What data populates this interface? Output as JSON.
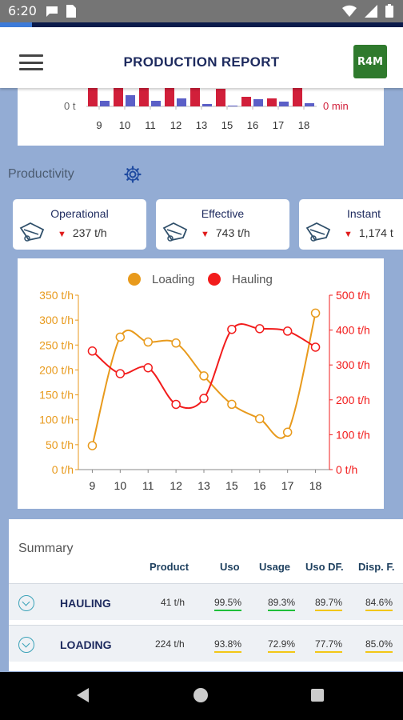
{
  "status_bar": {
    "time": "6:20",
    "progress": 0.08,
    "icons": [
      "chat-icon",
      "sim-icon",
      "wifi-icon",
      "signal-icon",
      "battery-icon"
    ]
  },
  "app_bar": {
    "title": "PRODUCTION REPORT",
    "logo_text": "R4M",
    "menu_icon": "hamburger-icon"
  },
  "top_chart": {
    "categories": [
      "9",
      "10",
      "11",
      "12",
      "13",
      "15",
      "16",
      "17",
      "18"
    ],
    "left_label": "0 t",
    "right_label": "0 min",
    "red_values": [
      0.95,
      1.0,
      1.0,
      1.0,
      1.0,
      0.55,
      0.3,
      0.25,
      0.7
    ],
    "blue_values": [
      0.35,
      0.7,
      0.35,
      0.5,
      0.15,
      0.05,
      0.45,
      0.3,
      0.2
    ],
    "colors": {
      "red": "#d11f3a",
      "blue": "#5b5fc7"
    }
  },
  "productivity": {
    "title": "Productivity",
    "settings_icon": "gear-icon",
    "cards": [
      {
        "title": "Operational",
        "value": "237 t/h",
        "icon": "truck-icon"
      },
      {
        "title": "Effective",
        "value": "743 t/h",
        "icon": "truck-icon"
      },
      {
        "title": "Instant",
        "value": "1,174 t",
        "icon": "truck-icon"
      }
    ]
  },
  "chart_data": {
    "type": "line",
    "x": [
      "9",
      "10",
      "11",
      "12",
      "13",
      "15",
      "16",
      "17",
      "18"
    ],
    "series": [
      {
        "name": "Loading",
        "axis": "left",
        "color": "#e89a1c",
        "values": [
          48,
          266,
          256,
          254,
          188,
          131,
          102,
          75,
          314
        ]
      },
      {
        "name": "Hauling",
        "axis": "right",
        "color": "#f21c1c",
        "values": [
          340,
          275,
          292,
          187,
          204,
          402,
          404,
          397,
          351
        ]
      }
    ],
    "left_axis": {
      "ticks": [
        "0 t/h",
        "50 t/h",
        "100 t/h",
        "150 t/h",
        "200 t/h",
        "250 t/h",
        "300 t/h",
        "350 t/h"
      ],
      "ylim": [
        0,
        350
      ],
      "color": "#e89a1c"
    },
    "right_axis": {
      "ticks": [
        "0 t/h",
        "100 t/h",
        "200 t/h",
        "300 t/h",
        "400 t/h",
        "500 t/h"
      ],
      "ylim": [
        0,
        500
      ],
      "color": "#f21c1c"
    },
    "legend": "top-center",
    "grid": false
  },
  "summary": {
    "title": "Summary",
    "columns": [
      "Product",
      "Uso",
      "Usage",
      "Uso DF.",
      "Disp. F."
    ],
    "rows": [
      {
        "name": "HAULING",
        "product": "41 t/h",
        "uso": "99.5%",
        "usage": "89.3%",
        "uso_df": "89.7%",
        "disp_f": "84.6%"
      },
      {
        "name": "LOADING",
        "product": "224 t/h",
        "uso": "93.8%",
        "usage": "72.9%",
        "uso_df": "77.7%",
        "disp_f": "85.0%"
      }
    ]
  },
  "nav": {
    "back_icon": "back-icon",
    "home_icon": "home-icon",
    "recent_icon": "recent-apps-icon"
  }
}
